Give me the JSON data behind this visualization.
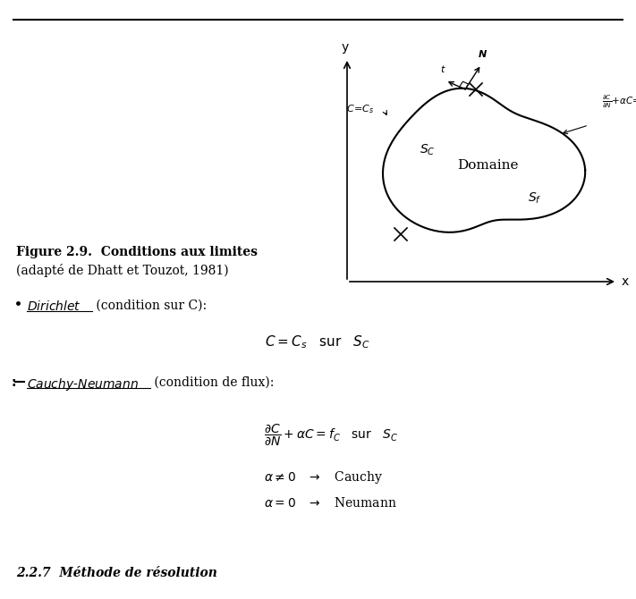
{
  "title_bold": "Figure 2.9.  Conditions aux limites",
  "title_italic": "(adapté de Dhatt et Touzot, 1981)",
  "bullet1_rest": " (condition sur C):",
  "bullet2_rest": " (condition de flux):",
  "footer": "2.2.7  Méthode de résolution",
  "bg_color": "#ffffff",
  "text_color": "#000000",
  "domain_label": "Domaine",
  "fig_xlabel": "x",
  "fig_ylabel": "y"
}
